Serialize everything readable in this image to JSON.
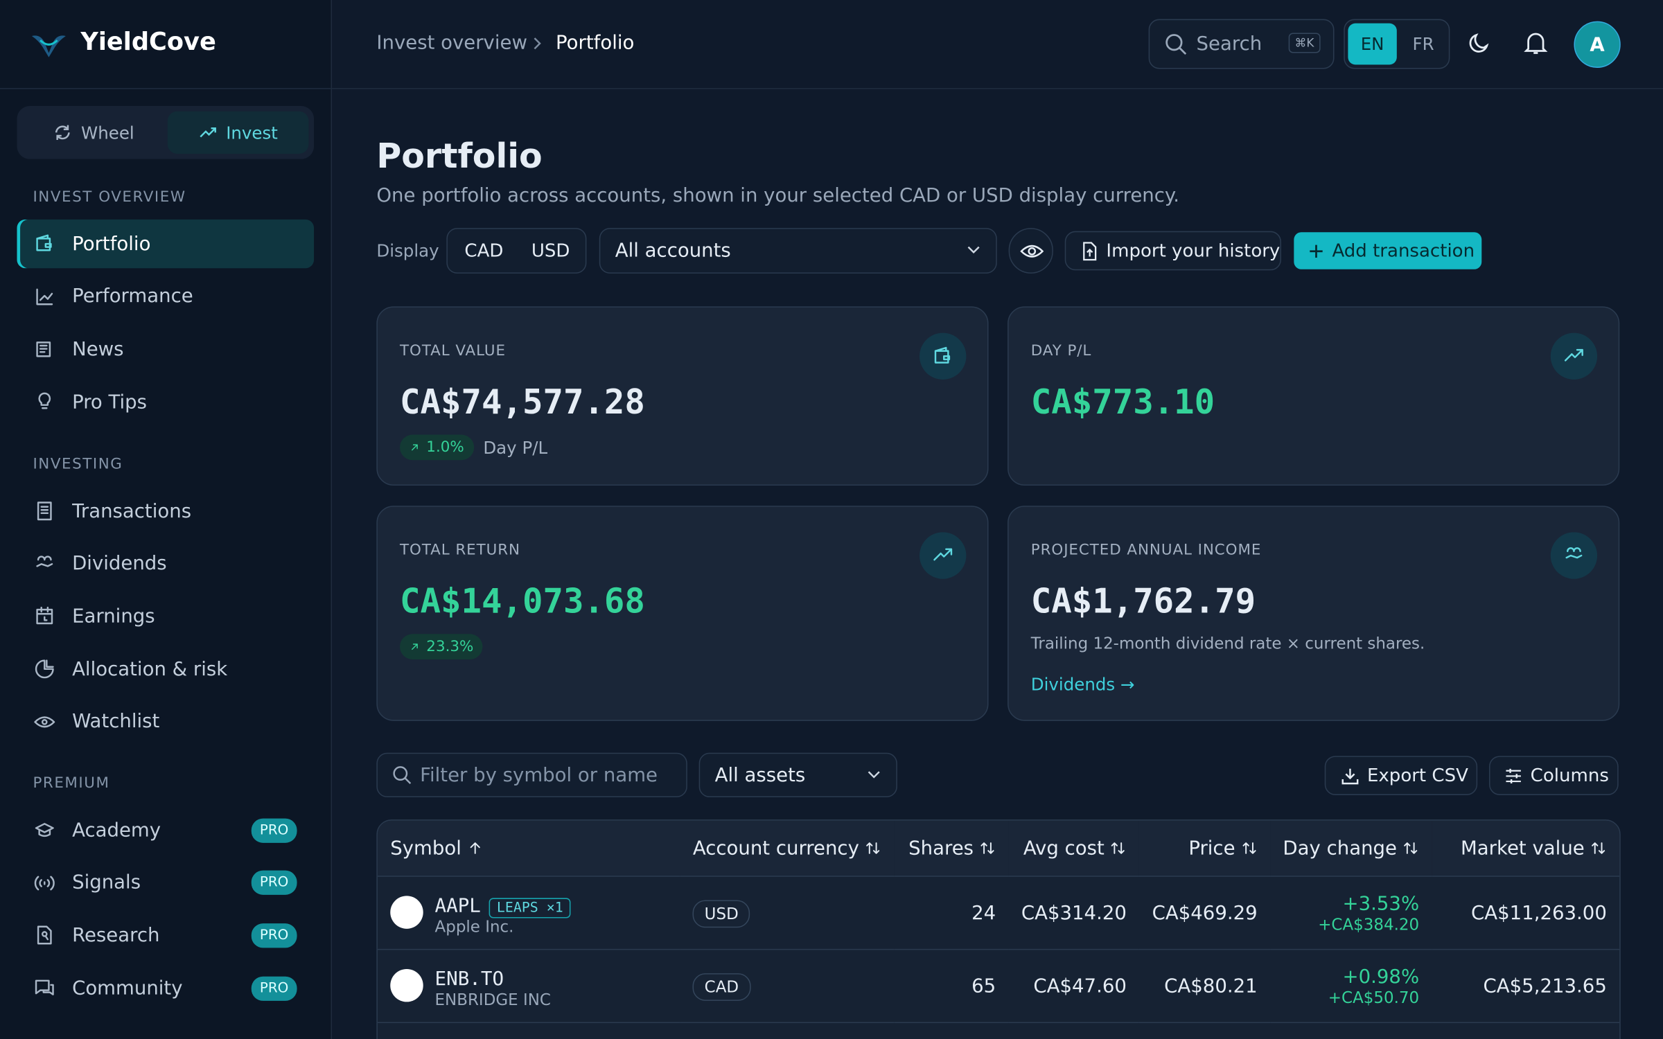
{
  "brand": "YieldCove",
  "mode_switch": [
    "Wheel",
    "Invest"
  ],
  "sidebar": {
    "sections": [
      {
        "title": "INVEST OVERVIEW",
        "items": [
          "Portfolio",
          "Performance",
          "News",
          "Pro Tips"
        ]
      },
      {
        "title": "INVESTING",
        "items": [
          "Transactions",
          "Dividends",
          "Earnings",
          "Allocation & risk",
          "Watchlist"
        ]
      },
      {
        "title": "PREMIUM",
        "items": [
          "Academy",
          "Signals",
          "Research",
          "Community"
        ]
      }
    ],
    "badge": "PRO"
  },
  "breadcrumb": [
    "Invest overview",
    "Portfolio"
  ],
  "search": {
    "placeholder": "Search",
    "shortcut": "⌘K"
  },
  "languages": [
    "EN",
    "FR"
  ],
  "avatar": "A",
  "page": {
    "title": "Portfolio",
    "subtitle": "One portfolio across accounts, shown in your selected CAD or USD display currency.",
    "display_label": "Display",
    "currencies": [
      "CAD",
      "USD"
    ],
    "account_select": "All accounts",
    "import": "Import your history",
    "add": "Add transaction"
  },
  "cards": [
    {
      "label": "TOTAL VALUE",
      "value": "CA$74,577.28",
      "change": "1.0%",
      "change_label": "Day P/L"
    },
    {
      "label": "DAY P/L",
      "value": "CA$773.10"
    },
    {
      "label": "TOTAL RETURN",
      "value": "CA$14,073.68",
      "change": "23.3%"
    },
    {
      "label": "PROJECTED ANNUAL INCOME",
      "value": "CA$1,762.79",
      "note": "Trailing 12-month dividend rate × current shares.",
      "link": "Dividends →"
    }
  ],
  "filters": {
    "placeholder": "Filter by symbol or name",
    "asset_select": "All assets",
    "export": "Export CSV",
    "columns": "Columns"
  },
  "table": {
    "columns": [
      "Symbol",
      "Account currency",
      "Shares",
      "Avg cost",
      "Price",
      "Day change",
      "Market value"
    ],
    "rows": [
      {
        "symbol": "AAPL",
        "tag": "LEAPS ×1",
        "name": "Apple Inc.",
        "currency": "USD",
        "shares": 24,
        "avg_cost": "CA$314.20",
        "price": "CA$469.29",
        "day_change_pct": "+3.53%",
        "day_change": "+CA$384.20",
        "market_value": "CA$11,263.00"
      },
      {
        "symbol": "ENB.TO",
        "name": "ENBRIDGE INC",
        "currency": "CAD",
        "shares": 65,
        "avg_cost": "CA$47.60",
        "price": "CA$80.21",
        "day_change_pct": "+0.98%",
        "day_change": "+CA$50.70",
        "market_value": "CA$5,213.65"
      }
    ]
  }
}
